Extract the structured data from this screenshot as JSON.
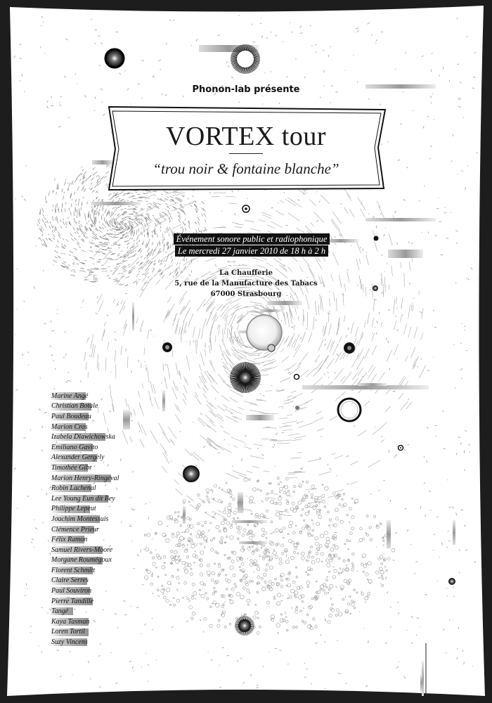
{
  "poster": {
    "presenter": "Phonon-lab présente",
    "title": "VORTEX tour",
    "subtitle": "“trou noir & fontaine blanche”",
    "event_lines": [
      "Événement sonore public et radiophonique",
      "Le mercredi 27 janvier 2010 de 18 h à 2 h"
    ],
    "venue": {
      "name": "La Chaufferie",
      "street": "5, rue de la Manufacture des Tabacs",
      "city": "67000 Strasbourg"
    },
    "artists": [
      "Marine Angé",
      "Christian Botale",
      "Paul Boudeau",
      "Marion Cros",
      "Izabela Dlawichowska",
      "Emiliano Gavito",
      "Alexander Gergely",
      "Timothée Gibr",
      "Marion Henry-Ringeval",
      "Robin Lachenal",
      "Lee Young Eun dit Bey",
      "Philippe Lepeut",
      "Joachim Montessuis",
      "Clémence Prieur",
      "Félix Ramon",
      "Samuel Rivers-Moore",
      "Morgane Roumégoux",
      "Florent Schmitt",
      "Claire Serres",
      "Paul Souviron",
      "Pierre Tandille",
      "Tangé",
      "Kaya Tasman",
      "Loren Tortil",
      "Suzy Vincens"
    ]
  },
  "colors": {
    "frame": "#1d1d1d",
    "paper": "#ffffff",
    "ink": "#111111",
    "particle": "#9a9a9a"
  },
  "icons": [
    "black-hole-icon",
    "white-fountain-icon",
    "target-dot-icon"
  ]
}
